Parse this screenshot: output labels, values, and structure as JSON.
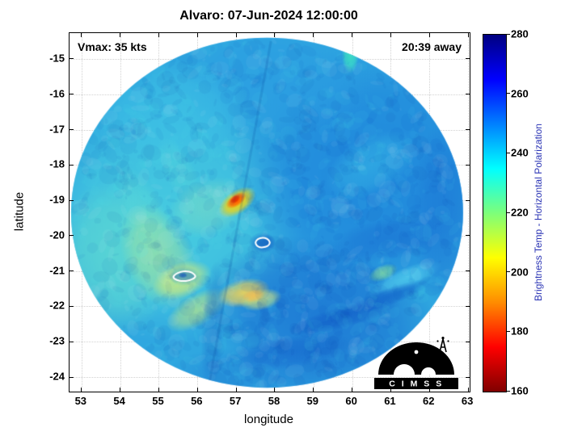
{
  "logo": {
    "text": "C I M S S"
  },
  "chart_data": {
    "type": "heatmap",
    "title": "Alvaro: 07-Jun-2024 12:00:00",
    "annotations": {
      "vmax": "Vmax: 35 kts",
      "eta": "20:39 away"
    },
    "xlabel": "longitude",
    "ylabel": "latitude",
    "xlim": [
      52.69,
      63.04
    ],
    "ylim": [
      -24.41,
      -14.27
    ],
    "xticks": [
      53,
      54,
      55,
      56,
      57,
      58,
      59,
      60,
      61,
      62,
      63
    ],
    "yticks": [
      -15,
      -16,
      -17,
      -18,
      -19,
      -20,
      -21,
      -22,
      -23,
      -24
    ],
    "grid": "dotted",
    "colorbar": {
      "label": "Brightness Temp - Horizontal Polarization",
      "label_color": "#2b35b5",
      "min": 160,
      "max": 280,
      "ticks": [
        160,
        180,
        200,
        220,
        240,
        260,
        280
      ],
      "stops": [
        {
          "v": 160,
          "c": "#800000"
        },
        {
          "v": 175,
          "c": "#ff0000"
        },
        {
          "v": 190,
          "c": "#ff8c00"
        },
        {
          "v": 205,
          "c": "#ffff00"
        },
        {
          "v": 220,
          "c": "#7dff7a"
        },
        {
          "v": 235,
          "c": "#00ffff"
        },
        {
          "v": 250,
          "c": "#0080ff"
        },
        {
          "v": 265,
          "c": "#0000ff"
        },
        {
          "v": 280,
          "c": "#000080"
        }
      ]
    },
    "swath": {
      "lon": 57.8,
      "lat": -19.35,
      "rx": 5.07,
      "ry": 4.95,
      "base_color": "#2fa7e0",
      "texture": {
        "seed": 7,
        "count": 1500,
        "palette": [
          "rgba(255,255,255,0.05)",
          "rgba(8,64,190,0.06)",
          "rgba(90,235,240,0.06)",
          "rgba(0,34,150,0.05)"
        ]
      },
      "seam": {
        "from": [
          57.9,
          -14.5
        ],
        "to": [
          56.3,
          -24.2
        ]
      }
    },
    "features": [
      {
        "lon": 55.2,
        "lat": -19.6,
        "rx": 3.6,
        "ry": 3.4,
        "rot": 0,
        "c": "#49cfe0",
        "a": 0.9
      },
      {
        "lon": 53.9,
        "lat": -20.6,
        "rx": 1.6,
        "ry": 2.2,
        "rot": 0,
        "c": "#62dbd0",
        "a": 0.7
      },
      {
        "lon": 60.6,
        "lat": -18.3,
        "rx": 3.6,
        "ry": 3.8,
        "rot": 0,
        "c": "#1f86dc",
        "a": 0.95
      },
      {
        "lon": 59.2,
        "lat": -22.3,
        "rx": 3.2,
        "ry": 2.2,
        "rot": 15,
        "c": "#1a70d2",
        "a": 0.8
      },
      {
        "lon": 58.0,
        "lat": -15.6,
        "rx": 2.6,
        "ry": 1.6,
        "rot": 0,
        "c": "#2b9de2",
        "a": 0.8
      },
      {
        "lon": 55.3,
        "lat": -16.6,
        "rx": 2.2,
        "ry": 1.6,
        "rot": 0,
        "c": "#40c6e6",
        "a": 0.7
      },
      {
        "lon": 54.6,
        "lat": -19.2,
        "rx": 0.5,
        "ry": 1.3,
        "rot": -28,
        "c": "#58d6d8",
        "a": 0.5
      },
      {
        "lon": 55.6,
        "lat": -18.3,
        "rx": 0.4,
        "ry": 1.2,
        "rot": -28,
        "c": "#58d6d8",
        "a": 0.4
      },
      {
        "lon": 56.3,
        "lat": -19.2,
        "rx": 1.1,
        "ry": 0.8,
        "rot": -20,
        "c": "#86e0c0",
        "a": 0.5
      },
      {
        "lon": 55.0,
        "lat": -20.6,
        "rx": 0.9,
        "ry": 1.6,
        "rot": -25,
        "c": "#b7e892",
        "a": 0.55
      },
      {
        "lon": 55.6,
        "lat": -21.25,
        "rx": 0.8,
        "ry": 0.5,
        "rot": -20,
        "c": "#d3ec7c",
        "a": 0.8
      },
      {
        "lon": 56.0,
        "lat": -22.1,
        "rx": 0.9,
        "ry": 0.45,
        "rot": -30,
        "c": "#c9e97f",
        "a": 0.65
      },
      {
        "lon": 57.2,
        "lat": -21.62,
        "rx": 0.7,
        "ry": 0.4,
        "rot": -12,
        "c": "#ffd94f",
        "a": 0.85
      },
      {
        "lon": 57.64,
        "lat": -21.81,
        "rx": 0.55,
        "ry": 0.3,
        "rot": -12,
        "c": "#e6ec6e",
        "a": 0.7
      },
      {
        "lon": 57.45,
        "lat": -21.7,
        "rx": 0.3,
        "ry": 0.18,
        "rot": -12,
        "c": "#ffb347",
        "a": 0.6
      },
      {
        "lon": 57.03,
        "lat": -19.05,
        "rx": 0.55,
        "ry": 0.33,
        "rot": -35,
        "c": "#ffd400",
        "a": 0.95
      },
      {
        "lon": 57.0,
        "lat": -19.0,
        "rx": 0.3,
        "ry": 0.17,
        "rot": -35,
        "c": "#ff5500",
        "a": 1
      },
      {
        "lon": 56.97,
        "lat": -18.97,
        "rx": 0.15,
        "ry": 0.1,
        "rot": -35,
        "c": "#e03000",
        "a": 1
      },
      {
        "lon": 59.95,
        "lat": -14.9,
        "rx": 0.22,
        "ry": 0.5,
        "rot": 0,
        "c": "#3ce0c0",
        "a": 0.9
      },
      {
        "lon": 60.5,
        "lat": -18.0,
        "rx": 1.3,
        "ry": 0.8,
        "rot": -30,
        "c": "#3cc2e8",
        "a": 0.5
      },
      {
        "lon": 60.9,
        "lat": -20.1,
        "rx": 1.5,
        "ry": 0.6,
        "rot": -10,
        "c": "#1a6fd2",
        "a": 0.55
      },
      {
        "lon": 61.4,
        "lat": -21.2,
        "rx": 1.0,
        "ry": 0.3,
        "rot": -22,
        "c": "#57d4ef",
        "a": 0.7
      },
      {
        "lon": 60.8,
        "lat": -21.05,
        "rx": 0.4,
        "ry": 0.22,
        "rot": -22,
        "c": "#8ce98e",
        "a": 0.65
      },
      {
        "lon": 60.9,
        "lat": -21.75,
        "rx": 1.2,
        "ry": 0.25,
        "rot": -20,
        "c": "#0f5ac6",
        "a": 0.55
      },
      {
        "lon": 59.8,
        "lat": -22.3,
        "rx": 1.5,
        "ry": 0.3,
        "rot": -14,
        "c": "#1059c6",
        "a": 0.55
      },
      {
        "lon": 58.4,
        "lat": -23.3,
        "rx": 1.7,
        "ry": 0.45,
        "rot": -8,
        "c": "#1565cc",
        "a": 0.6
      },
      {
        "lon": 56.4,
        "lat": -22.6,
        "rx": 0.3,
        "ry": 1.9,
        "rot": 3,
        "c": "#1f78cc",
        "a": 0.5
      },
      {
        "lon": 62.35,
        "lat": -19.4,
        "rx": 0.8,
        "ry": 2.6,
        "rot": 0,
        "c": "#1b72d4",
        "a": 0.55
      },
      {
        "lon": 57.6,
        "lat": -23.9,
        "rx": 2.4,
        "ry": 0.8,
        "rot": 0,
        "c": "#1e7ad6",
        "a": 0.5
      },
      {
        "lon": 57.68,
        "lat": -20.2,
        "rx": 0.35,
        "ry": 0.3,
        "rot": 0,
        "c": "#155fc8",
        "a": 0.7
      },
      {
        "lon": 55.66,
        "lat": -21.14,
        "rx": 0.4,
        "ry": 0.28,
        "rot": 0,
        "c": "#2f9ad8",
        "a": 0.5
      },
      {
        "lon": 55.62,
        "lat": -21.12,
        "rx": 0.12,
        "ry": 0.08,
        "rot": 0,
        "c": "#0c4cb8",
        "a": 0.8
      }
    ],
    "contours": [
      {
        "lon": 57.68,
        "lat": -20.2,
        "points": [
          [
            0.2,
            0.02
          ],
          [
            0.13,
            0.12
          ],
          [
            0.0,
            0.15
          ],
          [
            -0.12,
            0.11
          ],
          [
            -0.19,
            0.02
          ],
          [
            -0.15,
            -0.09
          ],
          [
            -0.05,
            -0.14
          ],
          [
            0.08,
            -0.12
          ],
          [
            0.17,
            -0.07
          ]
        ]
      },
      {
        "lon": 55.66,
        "lat": -21.14,
        "points": [
          [
            0.3,
            0.0
          ],
          [
            0.2,
            0.1
          ],
          [
            0.05,
            0.14
          ],
          [
            -0.1,
            0.12
          ],
          [
            -0.24,
            0.05
          ],
          [
            -0.3,
            -0.04
          ],
          [
            -0.2,
            -0.12
          ],
          [
            -0.04,
            -0.15
          ],
          [
            0.12,
            -0.13
          ],
          [
            0.25,
            -0.07
          ]
        ]
      }
    ]
  }
}
